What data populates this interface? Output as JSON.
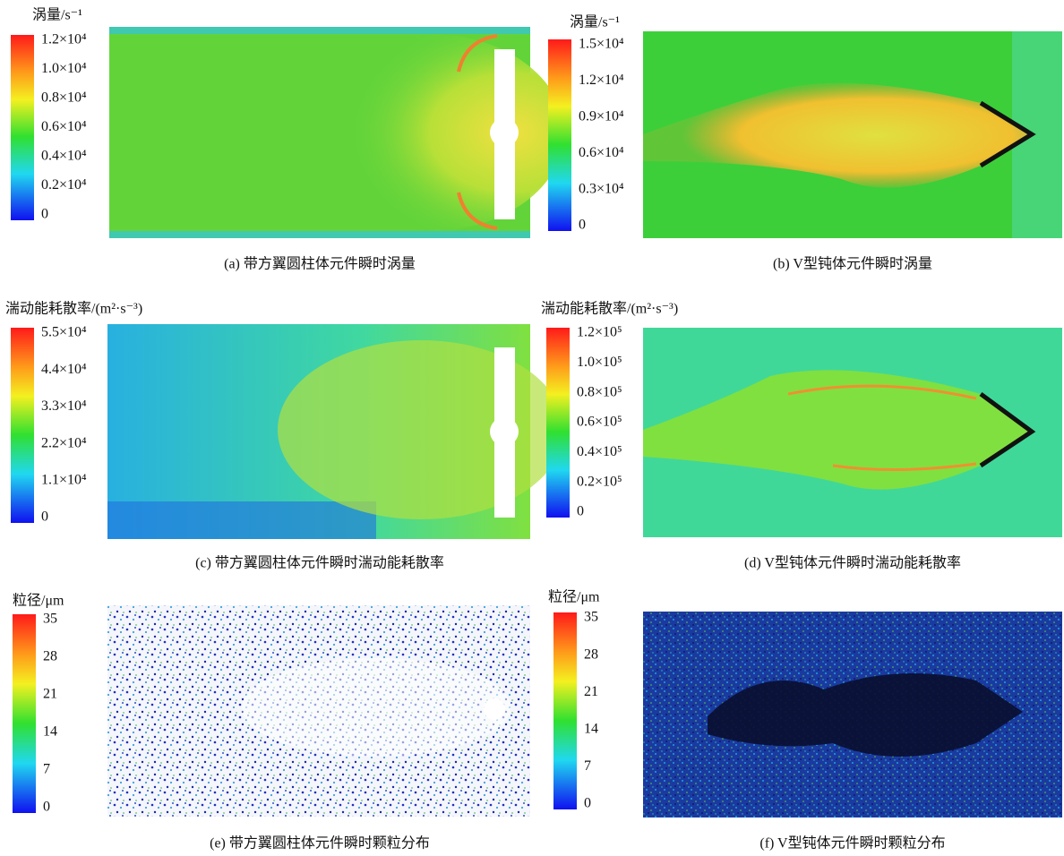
{
  "panels": [
    {
      "title": "涡量/s⁻¹",
      "ticks": [
        "1.2×10⁴",
        "1.0×10⁴",
        "0.8×10⁴",
        "0.6×10⁴",
        "0.4×10⁴",
        "0.2×10⁴",
        "0"
      ],
      "caption": "(a) 带方翼圆柱体元件瞬时涡量"
    },
    {
      "title": "涡量/s⁻¹",
      "ticks": [
        "1.5×10⁴",
        "1.2×10⁴",
        "0.9×10⁴",
        "0.6×10⁴",
        "0.3×10⁴",
        "0"
      ],
      "caption": "(b) V型钝体元件瞬时涡量"
    },
    {
      "title": "湍动能耗散率/(m²·s⁻³)",
      "ticks": [
        "5.5×10⁴",
        "4.4×10⁴",
        "3.3×10⁴",
        "2.2×10⁴",
        "1.1×10⁴",
        "0"
      ],
      "caption": "(c) 带方翼圆柱体元件瞬时湍动能耗散率"
    },
    {
      "title": "湍动能耗散率/(m²·s⁻³)",
      "ticks": [
        "1.2×10⁵",
        "1.0×10⁵",
        "0.8×10⁵",
        "0.6×10⁵",
        "0.4×10⁵",
        "0.2×10⁵",
        "0"
      ],
      "caption": "(d) V型钝体元件瞬时湍动能耗散率"
    },
    {
      "title": "粒径/μm",
      "ticks": [
        "35",
        "28",
        "21",
        "14",
        "7",
        "0"
      ],
      "caption": "(e) 带方翼圆柱体元件瞬时颗粒分布"
    },
    {
      "title": "粒径/μm",
      "ticks": [
        "35",
        "28",
        "21",
        "14",
        "7",
        "0"
      ],
      "caption": "(f) V型钝体元件瞬时颗粒分布"
    }
  ]
}
